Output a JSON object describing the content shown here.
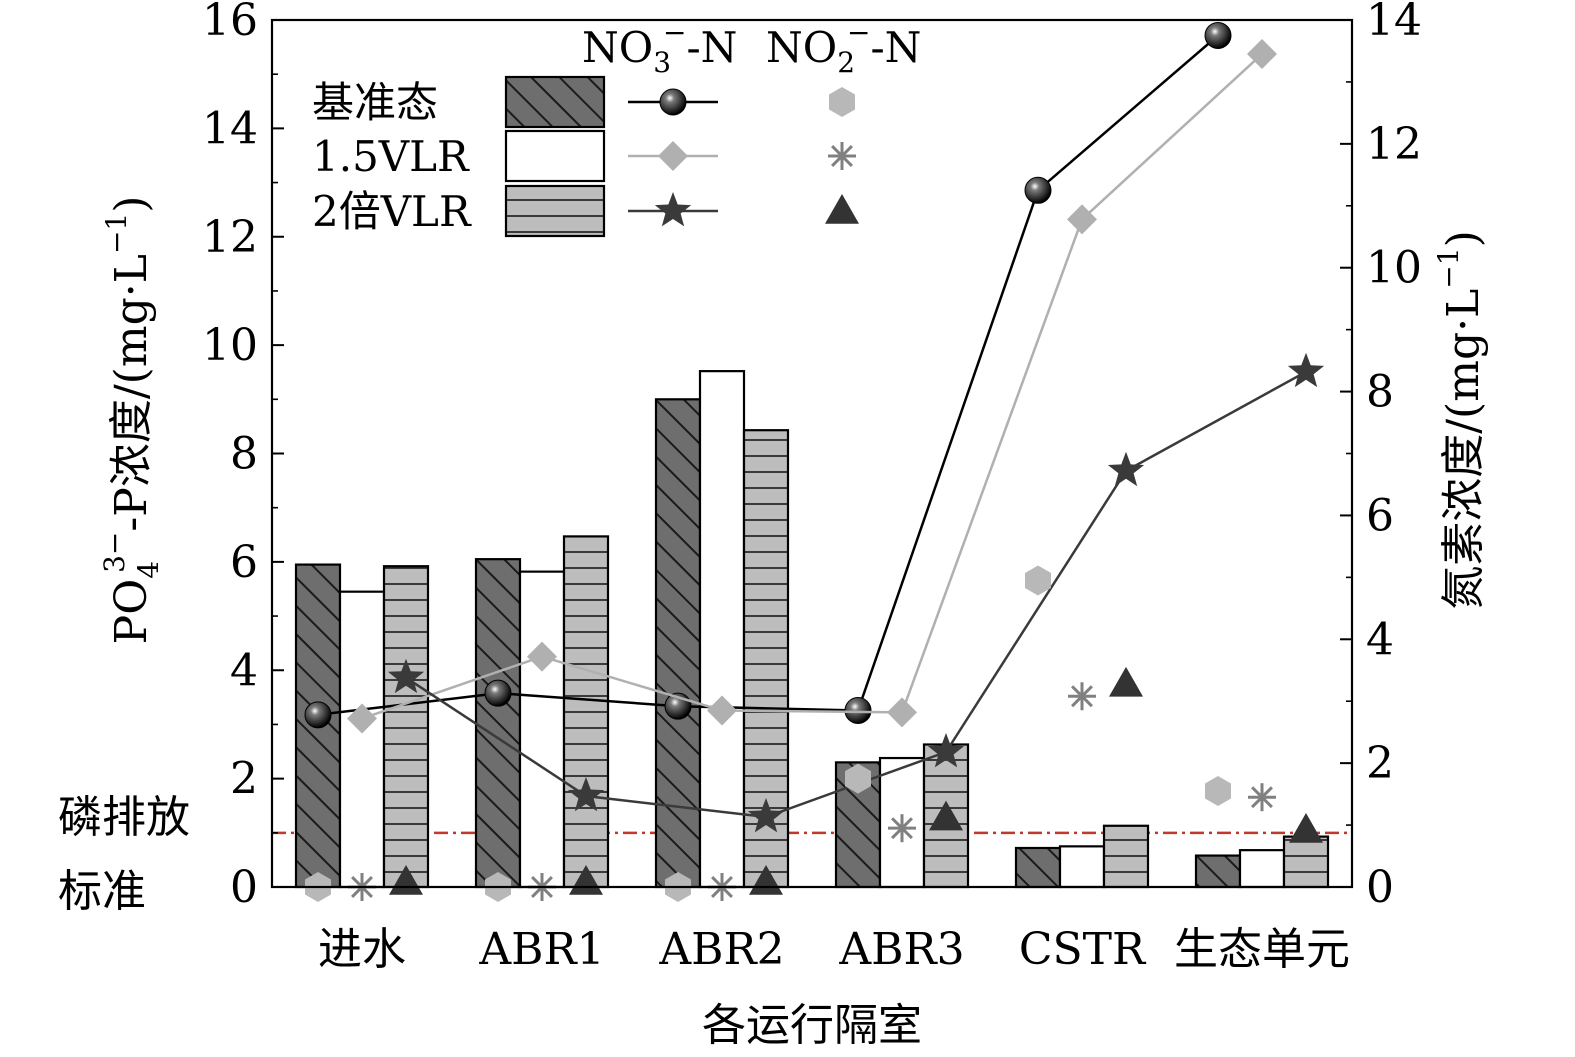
{
  "chart_data": {
    "type": "bar",
    "categories": [
      "进水",
      "ABR1",
      "ABR2",
      "ABR3",
      "CSTR",
      "生态单元"
    ],
    "xlabel": "各运行隔室",
    "ylabel_left": {
      "base": "PO",
      "sub": "4",
      "sup": "3−",
      "tail": "-P浓度/(mg·L",
      "unit_sup": "−1",
      "close": ")"
    },
    "ylabel_right": {
      "base": "氮素浓度/(mg·L",
      "unit_sup": "−1",
      "close": ")"
    },
    "ylim_left": [
      0,
      16
    ],
    "ylim_right": [
      0,
      14
    ],
    "yticks_left": [
      0,
      2,
      4,
      6,
      8,
      10,
      12,
      14,
      16
    ],
    "yticks_right": [
      0,
      2,
      4,
      6,
      8,
      10,
      12,
      14
    ],
    "bar_series": [
      {
        "name": "基准态",
        "values": [
          5.95,
          6.05,
          9.0,
          2.3,
          0.72,
          0.58
        ],
        "fill": "#6e6e6e",
        "pattern": "diagonal"
      },
      {
        "name": "1.5VLR",
        "values": [
          5.45,
          5.82,
          9.52,
          2.38,
          0.75,
          0.68
        ],
        "fill": "#ffffff",
        "pattern": "none"
      },
      {
        "name": "2倍VLR",
        "values": [
          5.92,
          6.47,
          8.43,
          2.63,
          1.13,
          0.93
        ],
        "fill": "#bdbdbd",
        "pattern": "horizontal"
      }
    ],
    "no3_series": [
      {
        "name": "基准态",
        "values": [
          2.78,
          3.13,
          2.92,
          2.85,
          11.25,
          13.75
        ],
        "color": "#000000",
        "marker": "sphere"
      },
      {
        "name": "1.5VLR",
        "values": [
          2.72,
          3.72,
          2.85,
          2.82,
          10.78,
          13.45
        ],
        "color": "#b0b0b0",
        "marker": "diamond"
      },
      {
        "name": "2倍VLR",
        "values": [
          3.38,
          1.47,
          1.13,
          2.18,
          6.72,
          8.32
        ],
        "color": "#3a3a3a",
        "marker": "star"
      }
    ],
    "no2_series": [
      {
        "name": "基准态",
        "values": [
          0.0,
          0.0,
          0.0,
          1.75,
          4.95,
          1.55
        ],
        "color": "#b8b8b8",
        "marker": "hexagon"
      },
      {
        "name": "1.5VLR",
        "values": [
          0.0,
          0.0,
          0.0,
          0.95,
          3.08,
          1.45
        ],
        "color": "#808080",
        "marker": "asterisk"
      },
      {
        "name": "2倍VLR",
        "values": [
          0.08,
          0.08,
          0.08,
          1.12,
          3.28,
          0.92
        ],
        "color": "#333333",
        "marker": "triangle"
      }
    ],
    "reference_line": {
      "value": 1.0,
      "label_line1": "磷排放",
      "label_line2": "标准",
      "color": "#c0392b"
    },
    "legend": {
      "placement": "top-left",
      "header_no3": {
        "base": "NO",
        "sub": "3",
        "sup": "−",
        "tail": "-N"
      },
      "header_no2": {
        "base": "NO",
        "sub": "2",
        "sup": "−",
        "tail": "-N"
      }
    }
  }
}
